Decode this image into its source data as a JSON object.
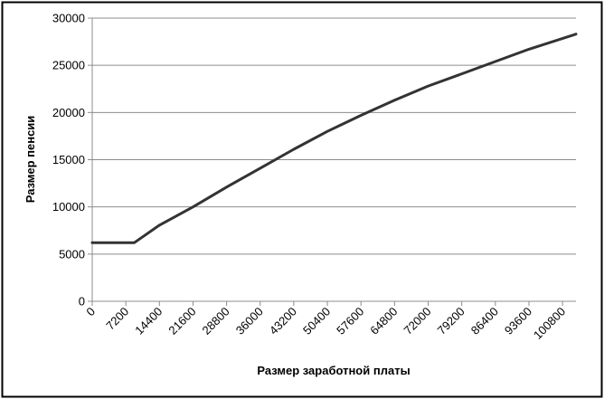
{
  "chart_data": {
    "type": "line",
    "title": "",
    "xlabel": "Размер заработной платы",
    "ylabel": "Размер пенсии",
    "x_ticks": [
      0,
      7200,
      14400,
      21600,
      28800,
      36000,
      43200,
      50400,
      57600,
      64800,
      72000,
      79200,
      86400,
      93600,
      100800
    ],
    "y_ticks": [
      0,
      5000,
      10000,
      15000,
      20000,
      25000,
      30000
    ],
    "xlim": [
      0,
      103680
    ],
    "ylim": [
      0,
      30000
    ],
    "grid": "horizontal",
    "legend": "none",
    "series": [
      {
        "color": "#333333",
        "points": [
          [
            0,
            6200
          ],
          [
            9000,
            6200
          ],
          [
            14400,
            8060
          ],
          [
            21600,
            10000
          ],
          [
            28800,
            12100
          ],
          [
            36000,
            14100
          ],
          [
            43200,
            16100
          ],
          [
            50400,
            18000
          ],
          [
            57600,
            19700
          ],
          [
            64800,
            21300
          ],
          [
            72000,
            22800
          ],
          [
            79200,
            24100
          ],
          [
            86400,
            25400
          ],
          [
            93600,
            26700
          ],
          [
            103680,
            28300
          ]
        ]
      }
    ]
  }
}
